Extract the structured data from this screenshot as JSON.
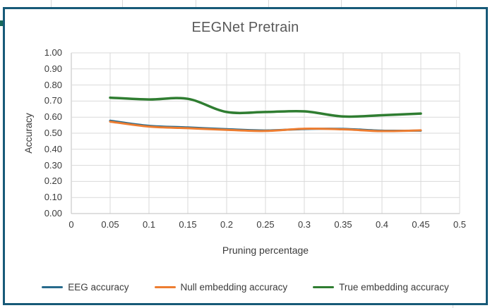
{
  "chart_data": {
    "type": "line",
    "title": "EEGNet Pretrain",
    "xlabel": "Pruning percentage",
    "ylabel": "Accuracy",
    "x": [
      0.05,
      0.1,
      0.15,
      0.2,
      0.25,
      0.3,
      0.35,
      0.4,
      0.45
    ],
    "series": [
      {
        "name": "EEG accuracy",
        "color": "#276A8C",
        "values": [
          0.578,
          0.546,
          0.536,
          0.525,
          0.517,
          0.526,
          0.527,
          0.516,
          0.516
        ]
      },
      {
        "name": "Null embedding accuracy",
        "color": "#ED7D31",
        "values": [
          0.572,
          0.541,
          0.531,
          0.521,
          0.514,
          0.528,
          0.524,
          0.513,
          0.518
        ]
      },
      {
        "name": "True embedding accuracy",
        "color": "#2F7D31",
        "values": [
          0.721,
          0.71,
          0.714,
          0.632,
          0.632,
          0.636,
          0.604,
          0.612,
          0.622
        ]
      }
    ],
    "x_ticks": [
      "0",
      "0.05",
      "0.1",
      "0.15",
      "0.2",
      "0.25",
      "0.3",
      "0.35",
      "0.4",
      "0.45",
      "0.5"
    ],
    "y_ticks": [
      "1.00",
      "0.90",
      "0.80",
      "0.70",
      "0.60",
      "0.50",
      "0.40",
      "0.30",
      "0.20",
      "0.10",
      "0.00"
    ],
    "xlim": [
      0,
      0.5
    ],
    "ylim": [
      0,
      1
    ],
    "grid": true,
    "smooth_lines": true,
    "legend_position": "bottom"
  },
  "colors": {
    "frame_border": "#175A78",
    "title_text": "#595959",
    "axis_text": "#3b3b3b",
    "gridline": "#D9D9D9",
    "axis_line": "#BFBFBF",
    "background": "#FFFFFF"
  }
}
